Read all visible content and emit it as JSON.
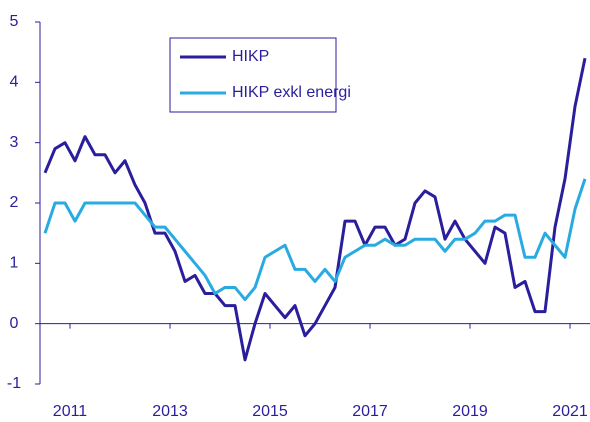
{
  "chart_data": {
    "type": "line",
    "x": [
      2010.5,
      2010.7,
      2010.9,
      2011.1,
      2011.3,
      2011.5,
      2011.7,
      2011.9,
      2012.1,
      2012.3,
      2012.5,
      2012.7,
      2012.9,
      2013.1,
      2013.3,
      2013.5,
      2013.7,
      2013.9,
      2014.1,
      2014.3,
      2014.5,
      2014.7,
      2014.9,
      2015.1,
      2015.3,
      2015.5,
      2015.7,
      2015.9,
      2016.1,
      2016.3,
      2016.5,
      2016.7,
      2016.9,
      2017.1,
      2017.3,
      2017.5,
      2017.7,
      2017.9,
      2018.1,
      2018.3,
      2018.5,
      2018.7,
      2018.9,
      2019.1,
      2019.3,
      2019.5,
      2019.7,
      2019.9,
      2020.1,
      2020.3,
      2020.5,
      2020.7,
      2020.9,
      2021.1,
      2021.3
    ],
    "series": [
      {
        "name": "HIKP",
        "color": "#2a1e9c",
        "values": [
          2.5,
          2.9,
          3.0,
          2.7,
          3.1,
          2.8,
          2.8,
          2.5,
          2.7,
          2.3,
          2.0,
          1.5,
          1.5,
          1.2,
          0.7,
          0.8,
          0.5,
          0.5,
          0.3,
          0.3,
          -0.6,
          0.0,
          0.5,
          0.3,
          0.1,
          0.3,
          -0.2,
          0.0,
          0.3,
          0.6,
          1.7,
          1.7,
          1.3,
          1.6,
          1.6,
          1.3,
          1.4,
          2.0,
          2.2,
          2.1,
          1.4,
          1.7,
          1.4,
          1.2,
          1.0,
          1.6,
          1.5,
          0.6,
          0.7,
          0.2,
          0.2,
          1.6,
          2.4,
          3.6,
          4.4
        ]
      },
      {
        "name": "HIKP exkl energi",
        "color": "#29abe2",
        "values": [
          1.5,
          2.0,
          2.0,
          1.7,
          2.0,
          2.0,
          2.0,
          2.0,
          2.0,
          2.0,
          1.8,
          1.6,
          1.6,
          1.4,
          1.2,
          1.0,
          0.8,
          0.5,
          0.6,
          0.6,
          0.4,
          0.6,
          1.1,
          1.2,
          1.3,
          0.9,
          0.9,
          0.7,
          0.9,
          0.7,
          1.1,
          1.2,
          1.3,
          1.3,
          1.4,
          1.3,
          1.3,
          1.4,
          1.4,
          1.4,
          1.2,
          1.4,
          1.4,
          1.5,
          1.7,
          1.7,
          1.8,
          1.8,
          1.1,
          1.1,
          1.5,
          1.3,
          1.1,
          1.9,
          2.4
        ]
      }
    ],
    "xlim": [
      2010.4,
      2021.4
    ],
    "xticks": [
      2011,
      2013,
      2015,
      2017,
      2019,
      2021
    ],
    "ylim": [
      -1,
      5
    ],
    "yticks": [
      -1,
      0,
      1,
      2,
      3,
      4,
      5
    ]
  }
}
